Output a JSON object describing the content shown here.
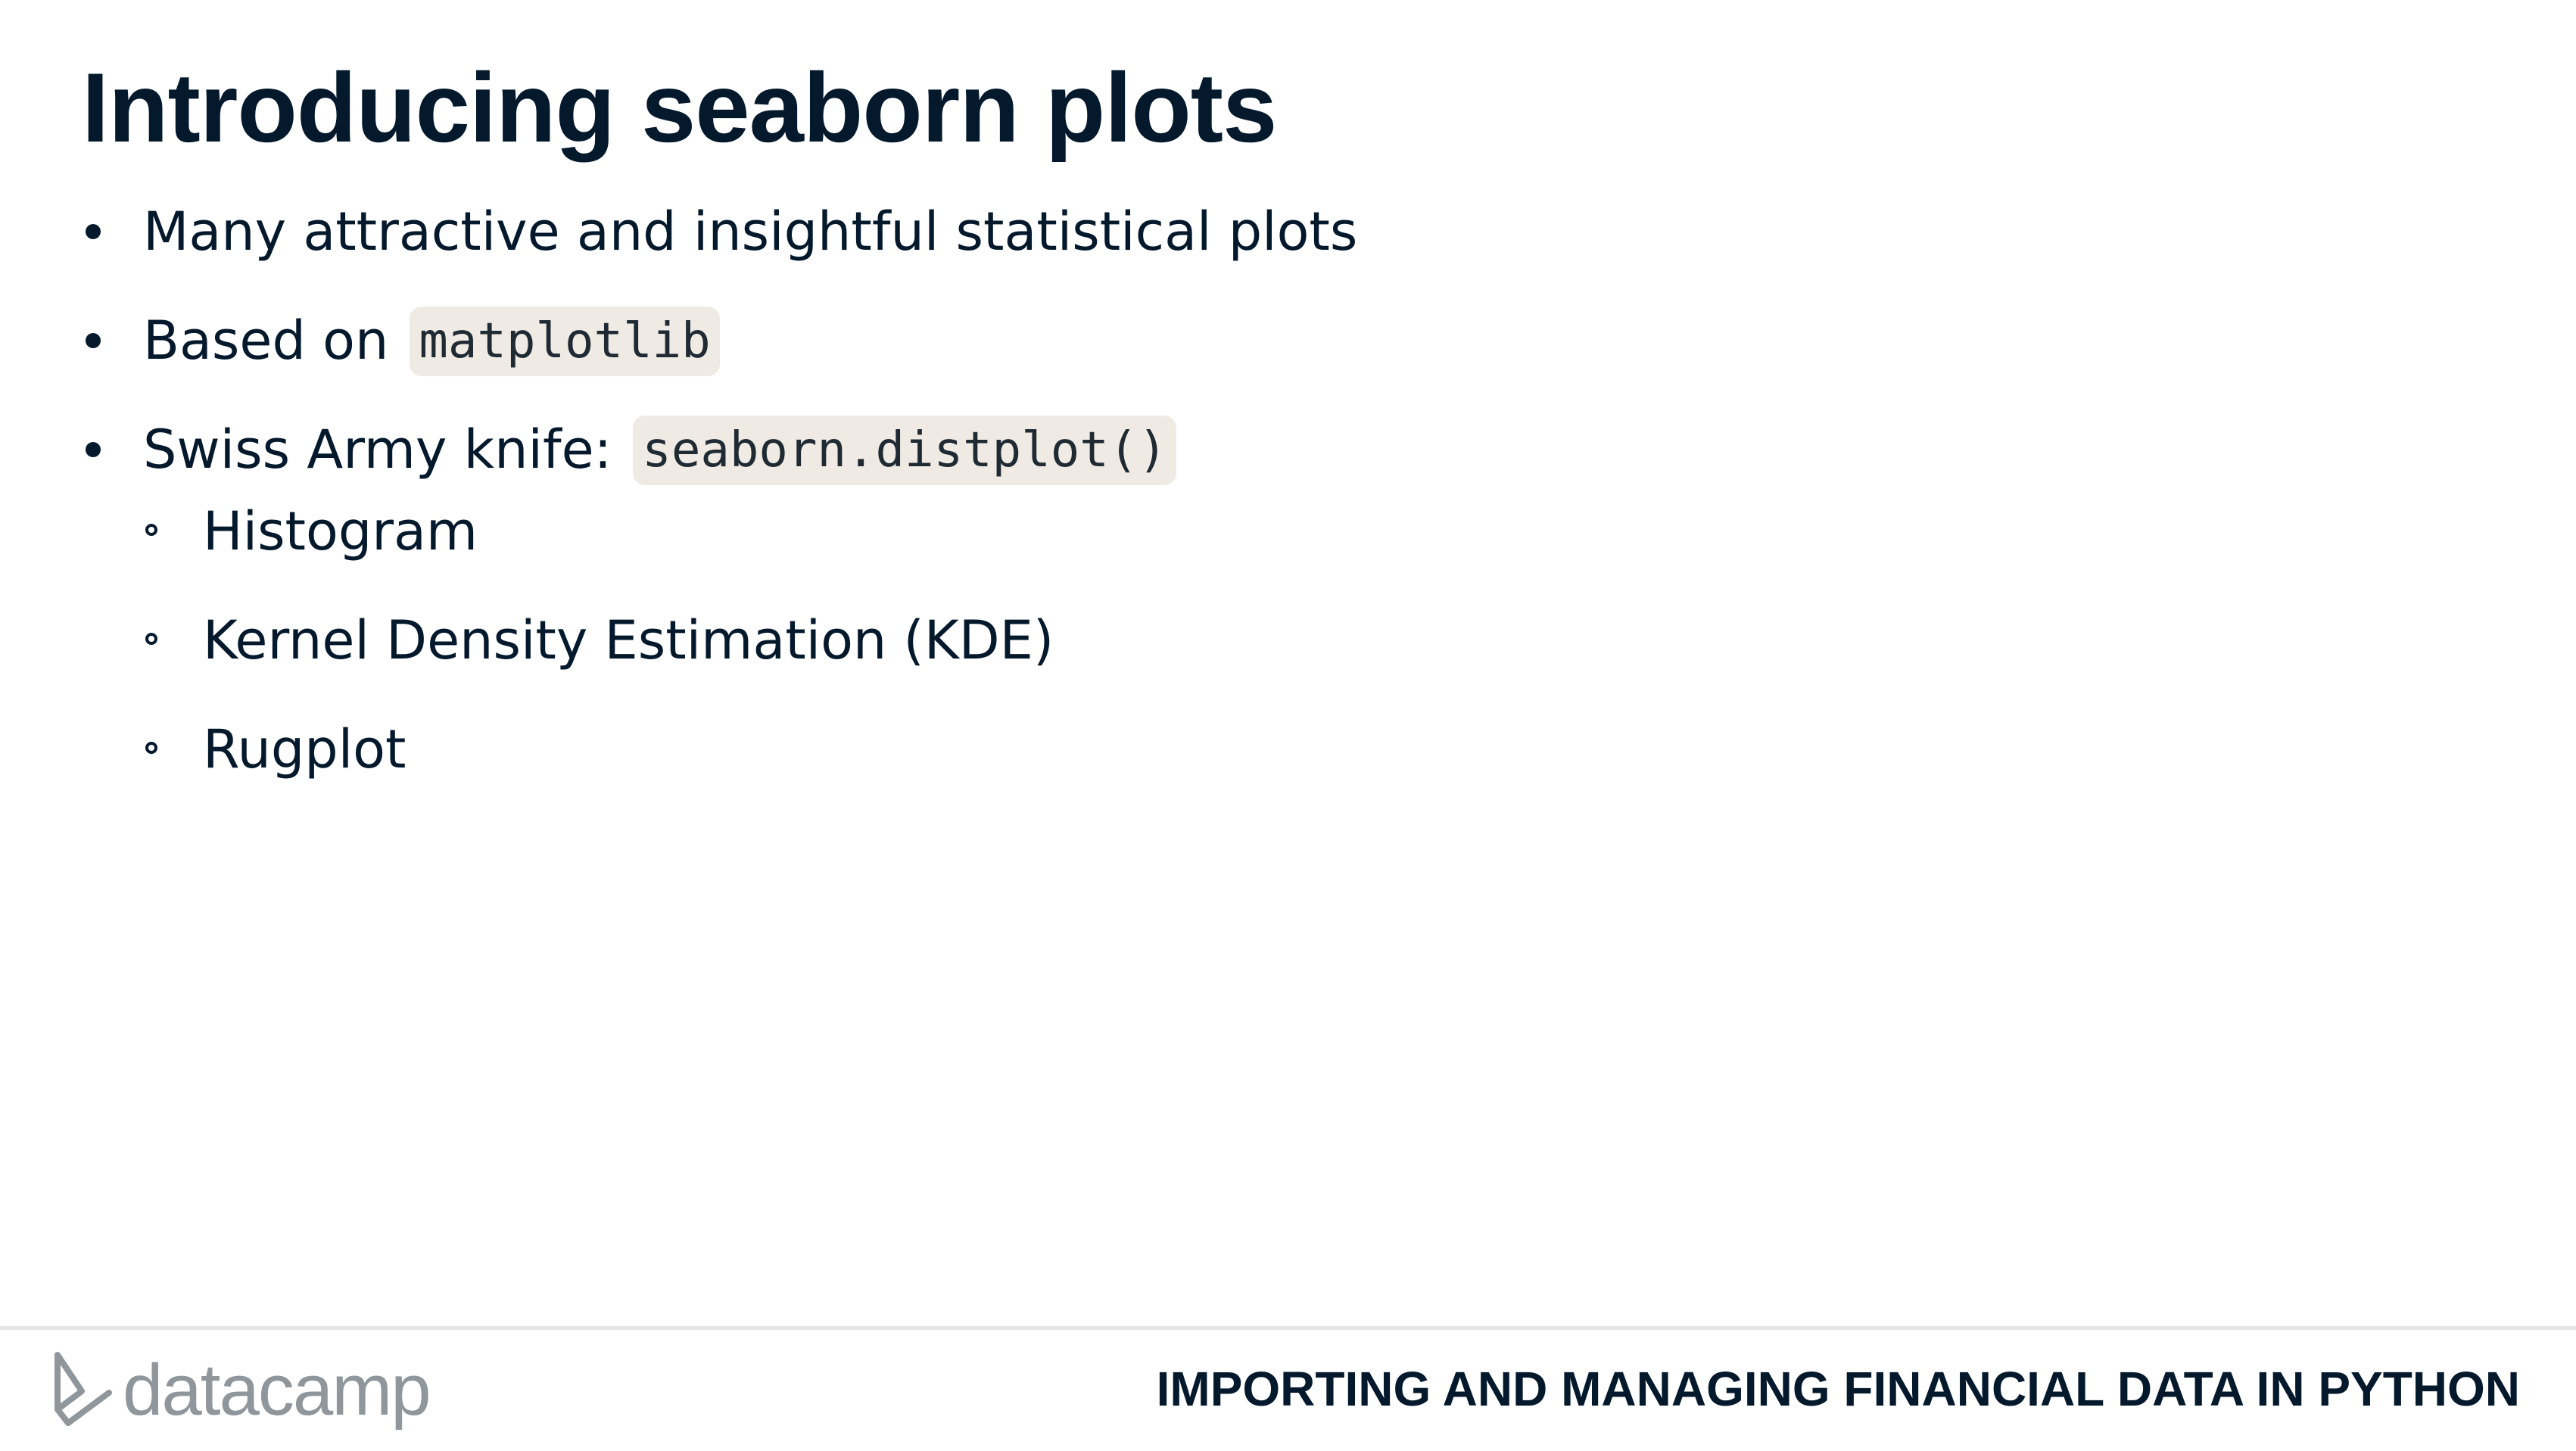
{
  "slide": {
    "title": "Introducing seaborn plots",
    "bullets": [
      {
        "text": "Many attractive and insightful statistical plots",
        "code": ""
      },
      {
        "text": "Based on",
        "code": "matplotlib"
      },
      {
        "text": "Swiss Army knife:",
        "code": "seaborn.distplot()"
      }
    ],
    "sub_bullets": [
      "Histogram",
      "Kernel Density Estimation (KDE)",
      "Rugplot"
    ]
  },
  "footer": {
    "logo_text": "datacamp",
    "logo_icon": "datacamp-logo-icon",
    "course_title": "IMPORTING AND MANAGING FINANCIAL DATA IN PYTHON"
  },
  "colors": {
    "text": "#05192d",
    "code_background": "#efebe4",
    "logo_gray": "#8f969c",
    "divider": "#e5e5e5"
  }
}
